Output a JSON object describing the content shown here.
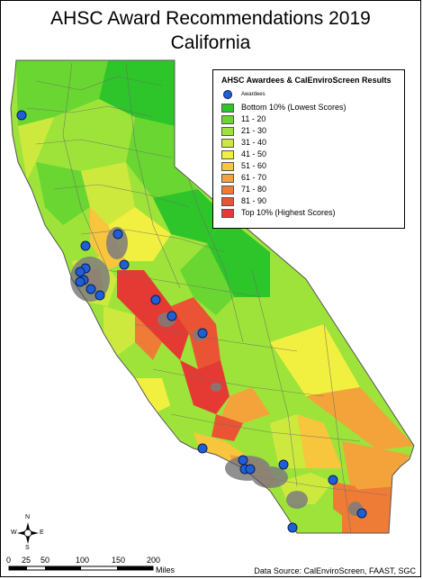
{
  "map": {
    "title_line1": "AHSC Award Recommendations 2019",
    "title_line2": "California",
    "source": "Data Source: CalEnviroScreen, FAAST, SGC"
  },
  "legend": {
    "title": "AHSC Awardees & CalEnviroScreen Results",
    "awardees_label": "Awardees",
    "awardee_color": "#1f5fd6",
    "classes": [
      {
        "label": "Bottom 10% (Lowest Scores)",
        "color": "#2ec52a"
      },
      {
        "label": "11 - 20",
        "color": "#6ad631"
      },
      {
        "label": "21 - 30",
        "color": "#9ee33a"
      },
      {
        "label": "31 - 40",
        "color": "#cde93d"
      },
      {
        "label": "41 - 50",
        "color": "#f1ef3f"
      },
      {
        "label": "51 - 60",
        "color": "#f7c63d"
      },
      {
        "label": "61 - 70",
        "color": "#f3a33a"
      },
      {
        "label": "71 - 80",
        "color": "#ef7c36"
      },
      {
        "label": "81 - 90",
        "color": "#ea5434"
      },
      {
        "label": "Top 10% (Highest Scores)",
        "color": "#e53a33"
      }
    ]
  },
  "scale_bar": {
    "ticks": [
      "0",
      "25",
      "50",
      "100",
      "150",
      "200"
    ],
    "unit": "Miles"
  },
  "compass": {
    "n": "N",
    "s": "S",
    "e": "E",
    "w": "W"
  }
}
